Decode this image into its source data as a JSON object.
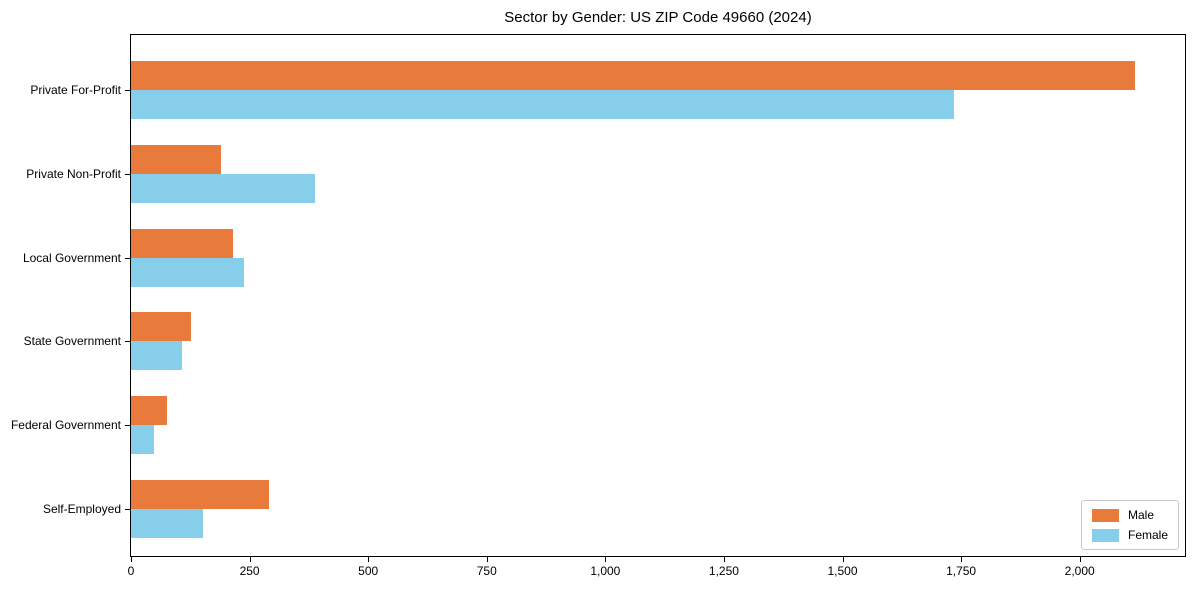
{
  "chart_data": {
    "type": "bar",
    "orientation": "horizontal",
    "title": "Sector by Gender: US ZIP Code 49660 (2024)",
    "categories": [
      "Private For-Profit",
      "Private Non-Profit",
      "Local Government",
      "State Government",
      "Federal Government",
      "Self-Employed"
    ],
    "series": [
      {
        "name": "Male",
        "color": "#e87a3c",
        "values": [
          2116,
          189,
          215,
          126,
          76,
          291
        ]
      },
      {
        "name": "Female",
        "color": "#87ceea",
        "values": [
          1735,
          387,
          238,
          107,
          48,
          152
        ]
      }
    ],
    "xlabel": "",
    "ylabel": "",
    "xlim": [
      0,
      2222
    ],
    "xticks": [
      0,
      250,
      500,
      750,
      1000,
      1250,
      1500,
      1750,
      2000
    ],
    "xtick_labels": [
      "0",
      "250",
      "500",
      "750",
      "1,000",
      "1,250",
      "1,500",
      "1,750",
      "2,000"
    ],
    "grid": false,
    "legend_position": "lower right",
    "axis_color": "#000000",
    "background_color": "#ffffff"
  }
}
